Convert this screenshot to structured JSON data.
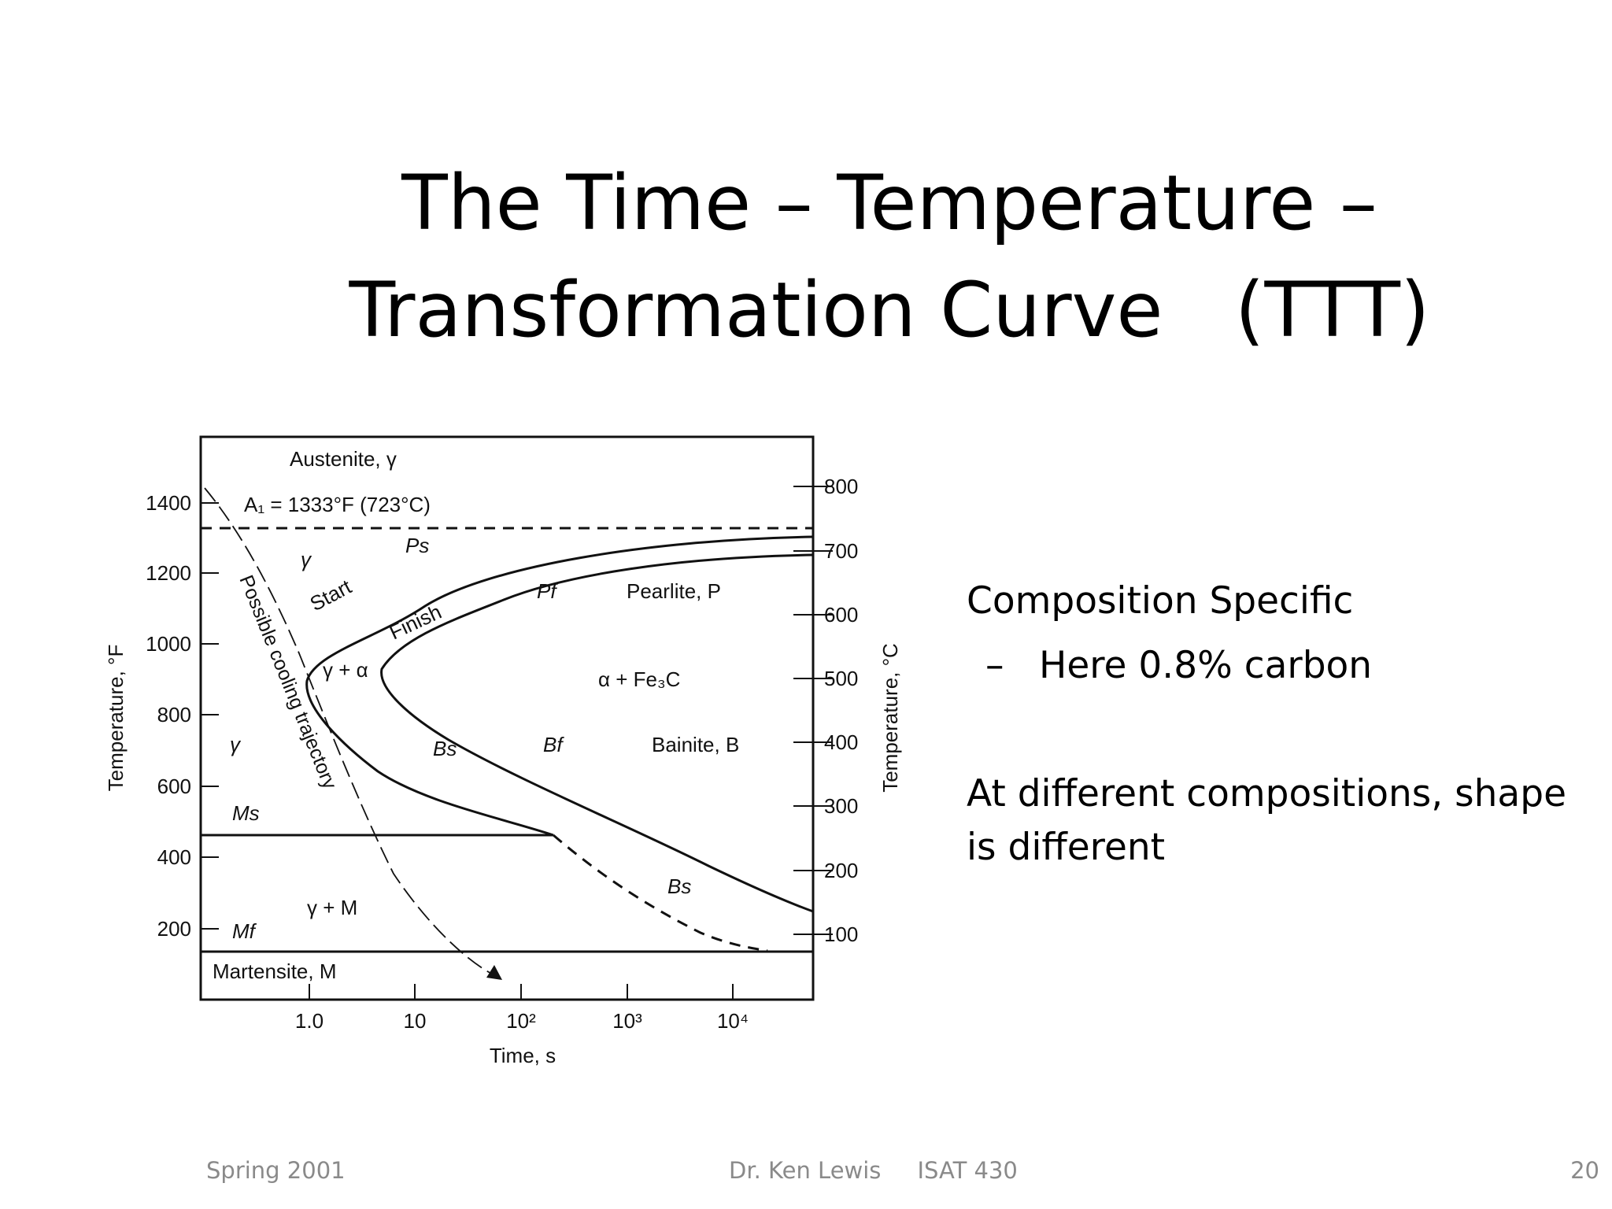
{
  "slide": {
    "title_line1": "The Time – Temperature –",
    "title_line2": "Transformation Curve   (TTT)",
    "bullets": {
      "b1": "Composition Specific",
      "b2_dash": "–",
      "b2": "Here 0.8% carbon",
      "b3": "At different compositions, shape is different"
    },
    "footer": {
      "left": "Spring 2001",
      "middle": "Dr. Ken Lewis     ISAT 430",
      "page": "20"
    }
  },
  "chart_data": {
    "type": "line",
    "xlabel": "Time, s",
    "xscale": "log",
    "xticks": [
      "1.0",
      "10",
      "10²",
      "10³",
      "10⁴"
    ],
    "ylabel_left": "Temperature, °F",
    "ylabel_right": "Temperature, °C",
    "yticks_left": [
      1400,
      1200,
      1000,
      800,
      600,
      400,
      200
    ],
    "yticks_right": [
      800,
      700,
      600,
      500,
      400,
      300,
      200,
      100
    ],
    "ylim_F": [
      50,
      1570
    ],
    "A1_label": "A₁ = 1333°F (723°C)",
    "A1_F": 1333,
    "Ms_F": 465,
    "Mf_F": 140,
    "regions": {
      "austenite": "Austenite, γ",
      "gamma_top": "γ",
      "gamma_left": "γ",
      "start": "Start",
      "finish": "Finish",
      "gamma_alpha": "γ + α",
      "alpha_fe3c": "α + Fe₃C",
      "pearlite": "Pearlite, P",
      "bainite": "Bainite, B",
      "ps": "Ps",
      "pf": "Pf",
      "bs": "Bs",
      "bf": "Bf",
      "bs2": "Bs",
      "ms": "Ms",
      "mf": "Mf",
      "gamma_m": "γ + M",
      "martensite": "Martensite, M",
      "trajectory": "Possible cooling trajectory"
    },
    "series": [
      {
        "name": "Start",
        "points": [
          [
            10000,
            1315
          ],
          [
            1000,
            1290
          ],
          [
            100,
            1230
          ],
          [
            10,
            1130
          ],
          [
            1,
            1000
          ],
          [
            1.05,
            880
          ],
          [
            3,
            760
          ],
          [
            20,
            620
          ],
          [
            130,
            500
          ],
          [
            250,
            460
          ],
          [
            2000,
            270
          ],
          [
            10000,
            165
          ]
        ]
      },
      {
        "name": "Finish",
        "points": [
          [
            30000,
            1265
          ],
          [
            1000,
            1220
          ],
          [
            100,
            1150
          ],
          [
            20,
            1050
          ],
          [
            4.5,
            980
          ],
          [
            10,
            850
          ],
          [
            100,
            700
          ],
          [
            1000,
            580
          ],
          [
            10000,
            450
          ],
          [
            50000,
            355
          ]
        ]
      }
    ]
  }
}
